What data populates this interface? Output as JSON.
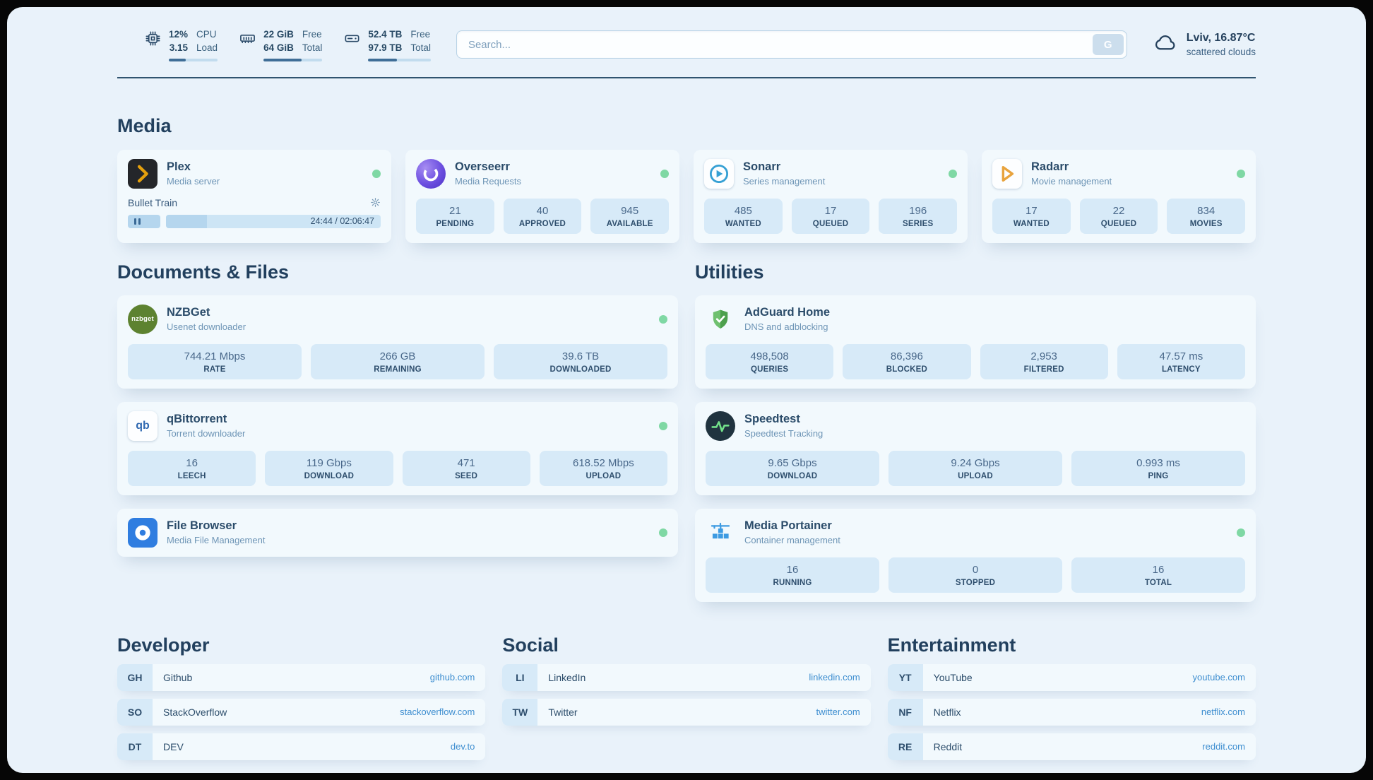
{
  "colors": {
    "page_bg": "#e9f2fa",
    "card_bg": "#f2f9fd",
    "stat_bg": "#d7eaf8",
    "accent_link": "#3e8ed0",
    "status_online": "#7fd8a4",
    "heading_text": "#22405e"
  },
  "topbar": {
    "resources": [
      {
        "icon": "cpu-icon",
        "value_top": "12%",
        "value_bottom": "3.15",
        "label_top": "CPU",
        "label_bottom": "Load",
        "progress_pct": 35
      },
      {
        "icon": "memory-icon",
        "value_top": "22 GiB",
        "value_bottom": "64 GiB",
        "label_top": "Free",
        "label_bottom": "Total",
        "progress_pct": 65
      },
      {
        "icon": "disk-icon",
        "value_top": "52.4 TB",
        "value_bottom": "97.9 TB",
        "label_top": "Free",
        "label_bottom": "Total",
        "progress_pct": 46
      }
    ],
    "search": {
      "placeholder": "Search...",
      "button_label": "G"
    },
    "weather": {
      "location": "Lviv, 16.87°C",
      "condition": "scattered clouds"
    }
  },
  "sections": {
    "media": "Media",
    "documents": "Documents & Files",
    "utilities": "Utilities"
  },
  "services": {
    "plex": {
      "name": "Plex",
      "desc": "Media server",
      "now_playing": "Bullet Train",
      "progress_time": "24:44 / 02:06:47",
      "progress_pct": 19
    },
    "overseerr": {
      "name": "Overseerr",
      "desc": "Media Requests",
      "stats": [
        {
          "value": "21",
          "label": "PENDING"
        },
        {
          "value": "40",
          "label": "APPROVED"
        },
        {
          "value": "945",
          "label": "AVAILABLE"
        }
      ]
    },
    "sonarr": {
      "name": "Sonarr",
      "desc": "Series management",
      "stats": [
        {
          "value": "485",
          "label": "WANTED"
        },
        {
          "value": "17",
          "label": "QUEUED"
        },
        {
          "value": "196",
          "label": "SERIES"
        }
      ]
    },
    "radarr": {
      "name": "Radarr",
      "desc": "Movie management",
      "stats": [
        {
          "value": "17",
          "label": "WANTED"
        },
        {
          "value": "22",
          "label": "QUEUED"
        },
        {
          "value": "834",
          "label": "MOVIES"
        }
      ]
    },
    "nzbget": {
      "name": "NZBGet",
      "desc": "Usenet downloader",
      "icon_text": "nzbget",
      "stats": [
        {
          "value": "744.21 Mbps",
          "label": "RATE"
        },
        {
          "value": "266 GB",
          "label": "REMAINING"
        },
        {
          "value": "39.6 TB",
          "label": "DOWNLOADED"
        }
      ]
    },
    "qbittorrent": {
      "name": "qBittorrent",
      "desc": "Torrent downloader",
      "icon_text": "qb",
      "stats": [
        {
          "value": "16",
          "label": "LEECH"
        },
        {
          "value": "119 Gbps",
          "label": "DOWNLOAD"
        },
        {
          "value": "471",
          "label": "SEED"
        },
        {
          "value": "618.52 Mbps",
          "label": "UPLOAD"
        }
      ]
    },
    "filebrowser": {
      "name": "File Browser",
      "desc": "Media File Management"
    },
    "adguard": {
      "name": "AdGuard Home",
      "desc": "DNS and adblocking",
      "stats": [
        {
          "value": "498,508",
          "label": "QUERIES"
        },
        {
          "value": "86,396",
          "label": "BLOCKED"
        },
        {
          "value": "2,953",
          "label": "FILTERED"
        },
        {
          "value": "47.57 ms",
          "label": "LATENCY"
        }
      ]
    },
    "speedtest": {
      "name": "Speedtest",
      "desc": "Speedtest Tracking",
      "stats": [
        {
          "value": "9.65 Gbps",
          "label": "DOWNLOAD"
        },
        {
          "value": "9.24 Gbps",
          "label": "UPLOAD"
        },
        {
          "value": "0.993 ms",
          "label": "PING"
        }
      ]
    },
    "portainer": {
      "name": "Media Portainer",
      "desc": "Container management",
      "stats": [
        {
          "value": "16",
          "label": "RUNNING"
        },
        {
          "value": "0",
          "label": "STOPPED"
        },
        {
          "value": "16",
          "label": "TOTAL"
        }
      ]
    }
  },
  "bookmarks": {
    "developer": {
      "title": "Developer",
      "items": [
        {
          "abbr": "GH",
          "name": "Github",
          "link": "github.com"
        },
        {
          "abbr": "SO",
          "name": "StackOverflow",
          "link": "stackoverflow.com"
        },
        {
          "abbr": "DT",
          "name": "DEV",
          "link": "dev.to"
        }
      ]
    },
    "social": {
      "title": "Social",
      "items": [
        {
          "abbr": "LI",
          "name": "LinkedIn",
          "link": "linkedin.com"
        },
        {
          "abbr": "TW",
          "name": "Twitter",
          "link": "twitter.com"
        }
      ]
    },
    "entertainment": {
      "title": "Entertainment",
      "items": [
        {
          "abbr": "YT",
          "name": "YouTube",
          "link": "youtube.com"
        },
        {
          "abbr": "NF",
          "name": "Netflix",
          "link": "netflix.com"
        },
        {
          "abbr": "RE",
          "name": "Reddit",
          "link": "reddit.com"
        }
      ]
    }
  }
}
